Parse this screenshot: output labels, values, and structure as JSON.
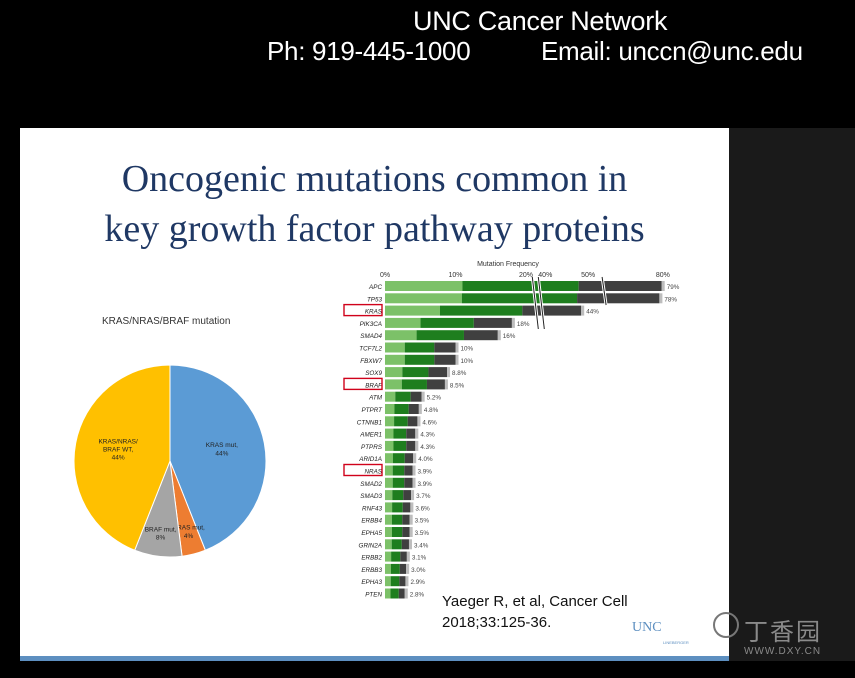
{
  "header": {
    "org_name": "UNC Cancer Network",
    "phone": "Ph: 919-445-1000",
    "email": "Email: unccn@unc.edu"
  },
  "slide": {
    "title_line1": "Oncogenic mutations common in",
    "title_line2": "key growth factor pathway proteins",
    "citation_line1": "Yaeger R, et al, Cancer Cell",
    "citation_line2": "2018;33:125-36.",
    "logo_text": "UNC",
    "logo_sub": "LINEBERGER"
  },
  "watermark": {
    "text": "丁香园",
    "url": "WWW.DXY.CN"
  },
  "colors": {
    "title": "#1f3864",
    "kras": "#5b9bd5",
    "nras": "#ed7d31",
    "braf": "#a5a5a5",
    "wt": "#ffc000",
    "bar_light": "#7cc168",
    "bar_mid": "#1e7e1e",
    "bar_dark": "#404040"
  },
  "chart_data": [
    {
      "type": "pie",
      "title": "KRAS/NRAS/BRAF mutation",
      "slices": [
        {
          "label": "KRAS mut,",
          "pct_label": "44%",
          "value": 44,
          "color": "#5b9bd5"
        },
        {
          "label": "NRAS mut,",
          "pct_label": "4%",
          "value": 4,
          "color": "#ed7d31"
        },
        {
          "label": "BRAF mut,",
          "pct_label": "8%",
          "value": 8,
          "color": "#a5a5a5"
        },
        {
          "label": "KRAS/NRAS/ BRAF WT,",
          "pct_label": "44%",
          "value": 44,
          "color": "#ffc000"
        }
      ]
    },
    {
      "type": "bar",
      "orientation": "horizontal",
      "title": "Mutation Frequency",
      "x_ticks": [
        "0%",
        "10%",
        "20%",
        "40%",
        "50%",
        "80%"
      ],
      "axis_break": true,
      "highlighted": [
        "KRAS",
        "BRAF",
        "NRAS"
      ],
      "categories": [
        "APC",
        "TP53",
        "KRAS",
        "PIK3CA",
        "SMAD4",
        "TCF7L2",
        "FBXW7",
        "SOX9",
        "BRAF",
        "ATM",
        "PTPRT",
        "CTNNB1",
        "AMER1",
        "PTPRS",
        "ARID1A",
        "NRAS",
        "SMAD2",
        "SMAD3",
        "RNF43",
        "ERBB4",
        "EPHA5",
        "GRIN2A",
        "ERBB2",
        "ERBB3",
        "EPHA3",
        "PTEN"
      ],
      "values": [
        79,
        78,
        44,
        18,
        16,
        10,
        10,
        8.8,
        8.5,
        5.2,
        4.8,
        4.6,
        4.3,
        4.3,
        4.0,
        3.9,
        3.9,
        3.7,
        3.6,
        3.5,
        3.5,
        3.4,
        3.1,
        3.0,
        2.9,
        2.8
      ],
      "value_labels": [
        "79%",
        "78%",
        "44%",
        "18%",
        "16%",
        "10%",
        "10%",
        "8.8%",
        "8.5%",
        "5.2%",
        "4.8%",
        "4.6%",
        "4.3%",
        "4.3%",
        "4.0%",
        "3.9%",
        "3.9%",
        "3.7%",
        "3.6%",
        "3.5%",
        "3.5%",
        "3.4%",
        "3.1%",
        "3.0%",
        "2.9%",
        "2.8%"
      ]
    }
  ]
}
